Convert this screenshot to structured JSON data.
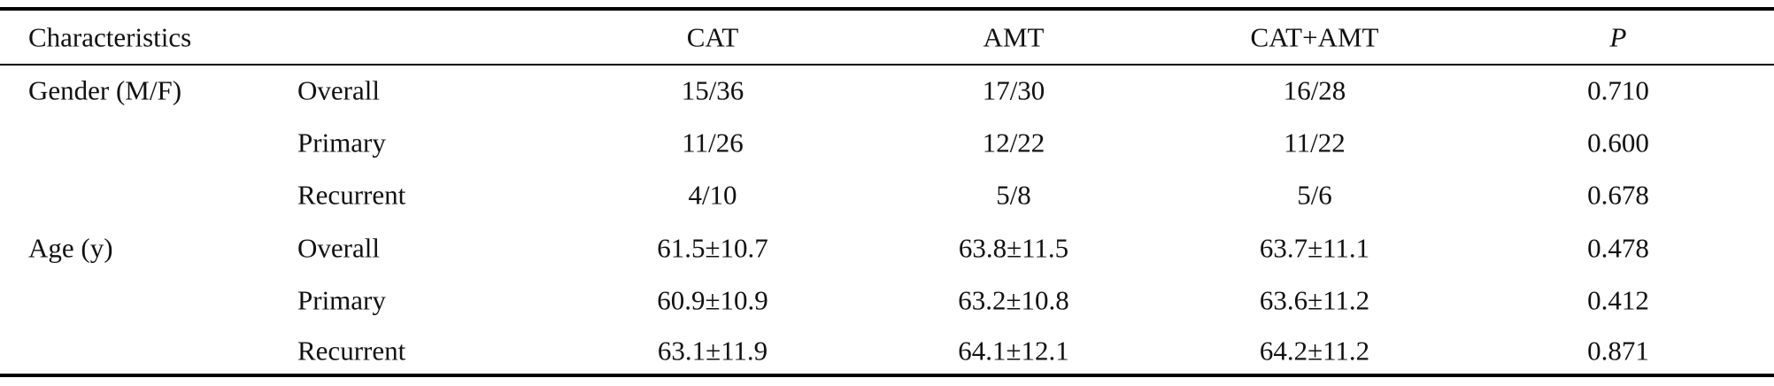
{
  "table": {
    "header": [
      "Characteristics",
      "CAT",
      "AMT",
      "CAT+AMT",
      "P"
    ],
    "rows": [
      {
        "group": "Gender (M/F)",
        "subgroup": "Overall",
        "cells": [
          "15/36",
          "17/30",
          "16/28",
          "0.710"
        ]
      },
      {
        "subgroup": "Primary",
        "cells": [
          "11/26",
          "12/22",
          "11/22",
          "0.600"
        ]
      },
      {
        "subgroup": "Recurrent",
        "cells": [
          "4/10",
          "5/8",
          "5/6",
          "0.678"
        ]
      },
      {
        "group": "Age (y)",
        "subgroup": "Overall",
        "cells": [
          "61.5±10.7",
          "63.8±11.5",
          "63.7±11.1",
          "0.478"
        ]
      },
      {
        "subgroup": "Primary",
        "cells": [
          "60.9±10.9",
          "63.2±10.8",
          "63.6±11.2",
          "0.412"
        ]
      },
      {
        "subgroup": "Recurrent",
        "cells": [
          "63.1±11.9",
          "64.1±12.1",
          "64.2±11.2",
          "0.871"
        ]
      }
    ]
  }
}
